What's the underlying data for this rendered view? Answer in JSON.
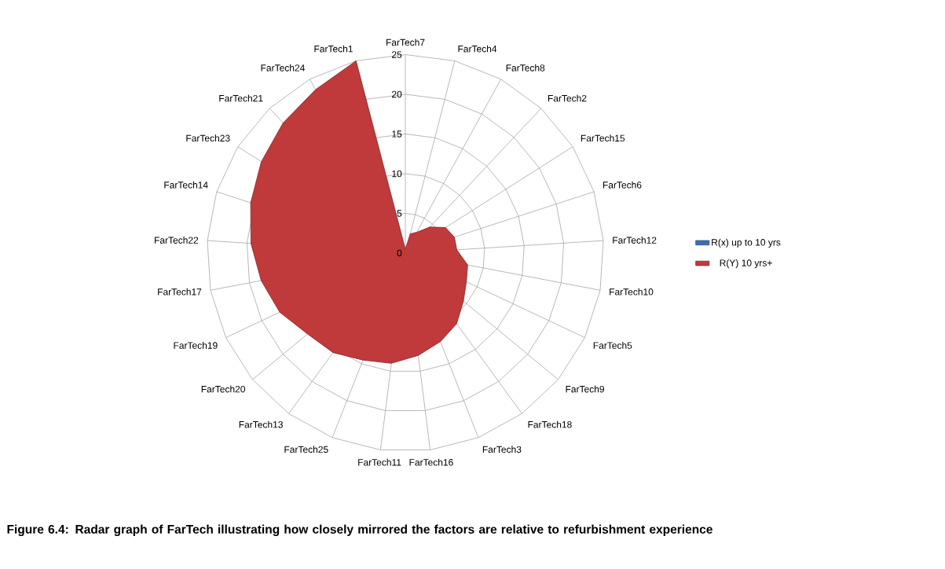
{
  "chart_data": {
    "type": "radar",
    "title": "Figure 6.4: Radar graph of FarTech illustrating how closely mirrored the factors are relative to refurbishment experience",
    "categories": [
      "FarTech7",
      "FarTech4",
      "FarTech8",
      "FarTech2",
      "FarTech15",
      "FarTech6",
      "FarTech12",
      "FarTech10",
      "FarTech5",
      "FarTech9",
      "FarTech18",
      "FarTech3",
      "FarTech16",
      "FarTech11",
      "FarTech25",
      "FarTech13",
      "FarTech20",
      "FarTech19",
      "FarTech17",
      "FarTech22",
      "FarTech14",
      "FarTech23",
      "FarTech21",
      "FarTech24",
      "FarTech1"
    ],
    "ylim": [
      0,
      25
    ],
    "yticks": [
      0,
      5,
      10,
      15,
      20,
      25
    ],
    "legend": "right",
    "series": [
      {
        "name": "R(Y) 10 yrs+",
        "color": "#c0393b",
        "values": [
          0.5,
          2.5,
          3,
          4.5,
          6,
          6.5,
          6.5,
          8,
          8.5,
          9.5,
          11,
          12,
          13,
          14,
          14.5,
          15.5,
          16,
          17.5,
          18.5,
          19.5,
          20.5,
          21.5,
          22.5,
          23.5,
          25
        ]
      },
      {
        "name": "R(x) up to 10 yrs",
        "color": "#3a6fb5",
        "values": [
          null,
          null,
          null,
          null,
          null,
          null,
          null,
          null,
          null,
          null,
          null,
          null,
          null,
          null,
          null,
          null,
          null,
          null,
          null,
          null,
          null,
          null,
          null,
          null,
          null
        ]
      }
    ]
  }
}
